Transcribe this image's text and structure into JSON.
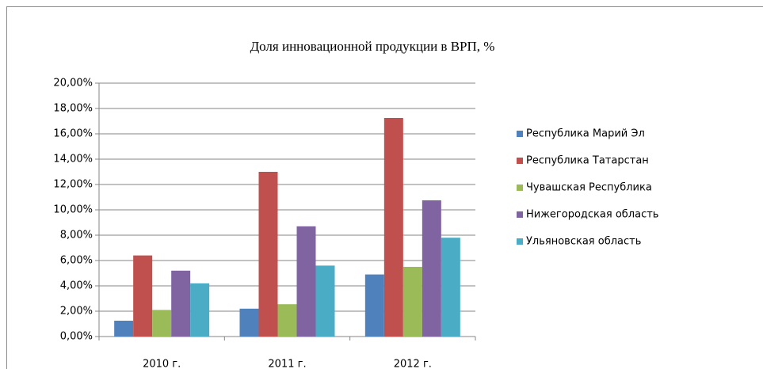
{
  "chart_data": {
    "type": "bar",
    "title": "Доля инновационной продукции в ВРП, %",
    "categories": [
      "2010 г.",
      "2011 г.",
      "2012 г."
    ],
    "series": [
      {
        "name": "Республика Марий Эл",
        "color": "#4f81bd",
        "values": [
          1.25,
          2.2,
          4.9
        ]
      },
      {
        "name": "Республика Татарстан",
        "color": "#c0504d",
        "values": [
          6.4,
          13.0,
          17.25
        ]
      },
      {
        "name": "Чувашская Республика",
        "color": "#9bbb59",
        "values": [
          2.1,
          2.55,
          5.5
        ]
      },
      {
        "name": "Нижегородская область",
        "color": "#8064a2",
        "values": [
          5.2,
          8.7,
          10.75
        ]
      },
      {
        "name": "Ульяновская область",
        "color": "#4bacc6",
        "values": [
          4.2,
          5.6,
          7.8
        ]
      }
    ],
    "ylim": [
      0,
      20
    ],
    "yticks": [
      {
        "value": 0,
        "label": "0,00%"
      },
      {
        "value": 2,
        "label": "2,00%"
      },
      {
        "value": 4,
        "label": "4,00%"
      },
      {
        "value": 6,
        "label": "6,00%"
      },
      {
        "value": 8,
        "label": "8,00%"
      },
      {
        "value": 10,
        "label": "10,00%"
      },
      {
        "value": 12,
        "label": "12,00%"
      },
      {
        "value": 14,
        "label": "14,00%"
      },
      {
        "value": 16,
        "label": "16,00%"
      },
      {
        "value": 18,
        "label": "18,00%"
      },
      {
        "value": 20,
        "label": "20,00%"
      }
    ],
    "grid": true,
    "legend": "right"
  }
}
